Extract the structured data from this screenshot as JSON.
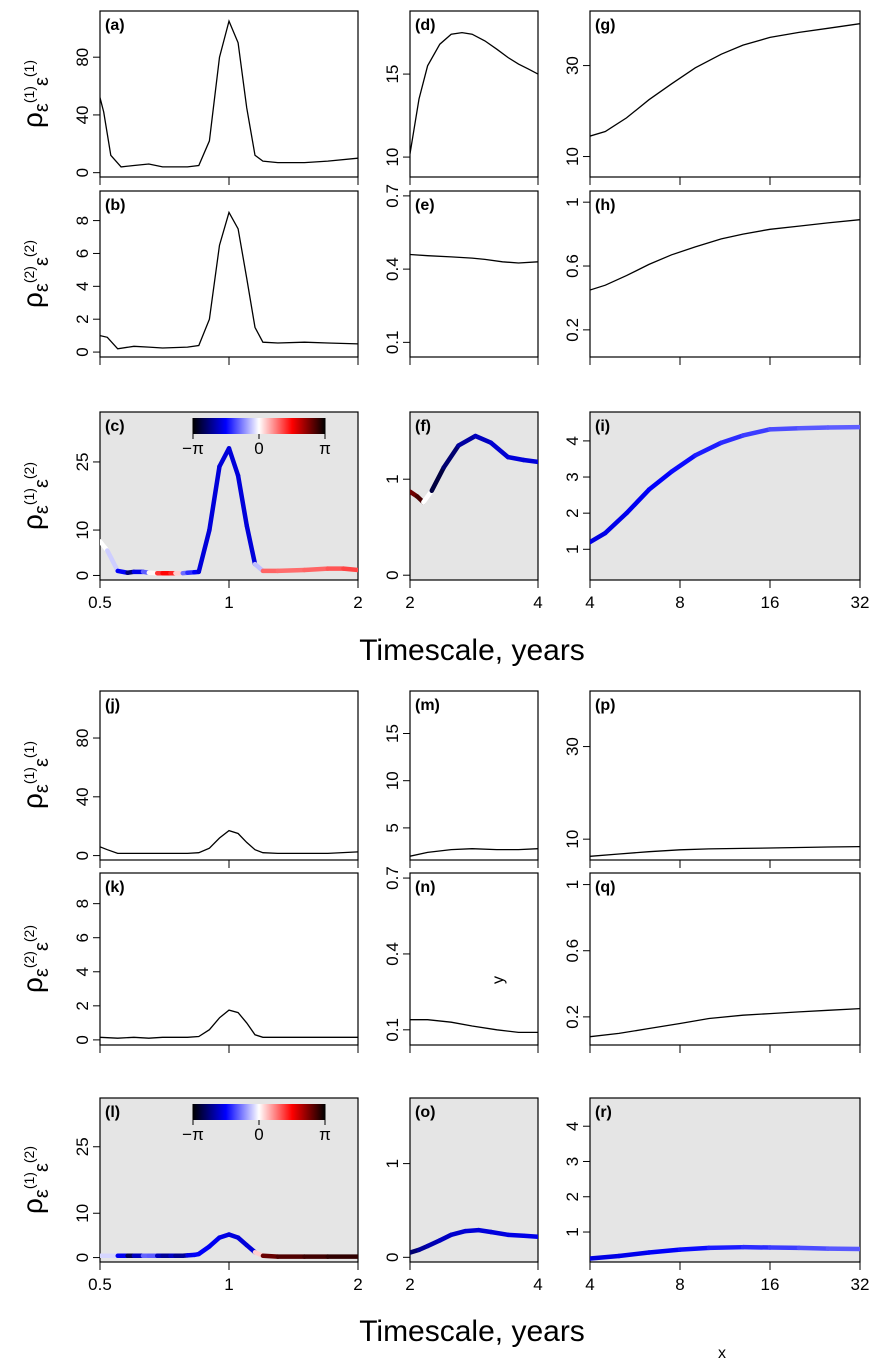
{
  "figure": {
    "xlabel_top": "Timescale, years",
    "xlabel_bottom": "Timescale, years",
    "stray_x": "x",
    "stray_y": "y"
  },
  "colorbar": {
    "labels": [
      "−π",
      "0",
      "π"
    ],
    "colors": [
      "#000000",
      "#0000ff",
      "#ffffff",
      "#ff0000",
      "#000000"
    ]
  },
  "row_ylabels": {
    "rho11": {
      "main": "ρ",
      "sub": "ε",
      "sup1": "(1)",
      "sub2": "ε",
      "sup2": "(1)"
    },
    "rho22": {
      "main": "ρ",
      "sub": "ε",
      "sup1": "(2)",
      "sub2": "ε",
      "sup2": "(2)"
    },
    "rho12": {
      "main": "ρ",
      "sub": "ε",
      "sup1": "(1)",
      "sub2": "ε",
      "sup2": "(2)"
    }
  },
  "chart_data": [
    {
      "id": "a",
      "label": "(a)",
      "type": "line",
      "xscale": "log2",
      "xlim": [
        0.5,
        2
      ],
      "ylim": [
        -3,
        112
      ],
      "yticks": [
        0,
        40,
        80
      ],
      "ylabel": "rho11",
      "x": [
        0.5,
        0.51,
        0.53,
        0.56,
        0.6,
        0.65,
        0.7,
        0.75,
        0.8,
        0.85,
        0.9,
        0.95,
        1.0,
        1.05,
        1.1,
        1.15,
        1.2,
        1.3,
        1.5,
        1.7,
        2.0
      ],
      "y": [
        52,
        42,
        12,
        4,
        5,
        6,
        4,
        4,
        4,
        5,
        22,
        80,
        105,
        90,
        45,
        12,
        8,
        7,
        7,
        8,
        10
      ]
    },
    {
      "id": "b",
      "label": "(b)",
      "type": "line",
      "xscale": "log2",
      "xlim": [
        0.5,
        2
      ],
      "ylim": [
        -0.3,
        9.8
      ],
      "yticks": [
        0,
        2,
        4,
        6,
        8
      ],
      "ylabel": "rho22",
      "x": [
        0.5,
        0.52,
        0.55,
        0.6,
        0.65,
        0.7,
        0.8,
        0.85,
        0.9,
        0.95,
        1.0,
        1.05,
        1.1,
        1.15,
        1.2,
        1.3,
        1.5,
        1.7,
        2.0
      ],
      "y": [
        1.0,
        0.9,
        0.2,
        0.35,
        0.3,
        0.25,
        0.3,
        0.4,
        2.0,
        6.5,
        8.5,
        7.5,
        4.5,
        1.5,
        0.6,
        0.55,
        0.6,
        0.55,
        0.5
      ]
    },
    {
      "id": "c",
      "label": "(c)",
      "type": "line",
      "xscale": "log2",
      "xlim": [
        0.5,
        2
      ],
      "ylim": [
        -1,
        36
      ],
      "yticks": [
        0,
        10,
        25
      ],
      "ylabel": "rho12",
      "shaded": true,
      "colorbar": true,
      "x": [
        0.5,
        0.52,
        0.55,
        0.58,
        0.6,
        0.63,
        0.65,
        0.68,
        0.7,
        0.73,
        0.75,
        0.78,
        0.8,
        0.83,
        0.85,
        0.9,
        0.95,
        1.0,
        1.05,
        1.1,
        1.15,
        1.2,
        1.3,
        1.5,
        1.7,
        1.85,
        2.0
      ],
      "y": [
        7.5,
        5.5,
        1.0,
        0.6,
        0.8,
        0.8,
        0.6,
        0.5,
        0.5,
        0.5,
        0.5,
        0.5,
        0.6,
        0.7,
        0.8,
        10,
        24,
        28,
        22,
        11,
        2.5,
        1.0,
        1.0,
        1.2,
        1.5,
        1.5,
        1.2
      ],
      "phase": [
        0.0,
        0.0,
        -0.6,
        -2.6,
        -2.2,
        -1.2,
        -0.8,
        0.9,
        1.6,
        1.5,
        1.2,
        -0.6,
        -1.2,
        -1.4,
        -1.8,
        -1.8,
        -1.8,
        -1.8,
        -1.8,
        -1.8,
        -1.8,
        1.0,
        0.9,
        0.9,
        1.0,
        1.1,
        1.2
      ]
    },
    {
      "id": "d",
      "label": "(d)",
      "type": "line",
      "xscale": "log2",
      "xlim": [
        2,
        4
      ],
      "ylim": [
        8.8,
        18.8
      ],
      "yticks": [
        10,
        15
      ],
      "ylabel": "",
      "x": [
        2,
        2.1,
        2.2,
        2.35,
        2.5,
        2.65,
        2.8,
        3.0,
        3.2,
        3.4,
        3.6,
        3.8,
        4.0
      ],
      "y": [
        10.2,
        13.5,
        15.5,
        16.8,
        17.4,
        17.5,
        17.4,
        17.0,
        16.5,
        16.0,
        15.6,
        15.3,
        15.0
      ]
    },
    {
      "id": "e",
      "label": "(e)",
      "type": "line",
      "xscale": "log2",
      "xlim": [
        2,
        4
      ],
      "ylim": [
        0.04,
        0.72
      ],
      "yticks": [
        0.1,
        0.4,
        0.7
      ],
      "ylabel": "",
      "x": [
        2,
        2.2,
        2.5,
        2.8,
        3.0,
        3.3,
        3.6,
        4.0
      ],
      "y": [
        0.46,
        0.455,
        0.45,
        0.445,
        0.44,
        0.43,
        0.425,
        0.43
      ]
    },
    {
      "id": "f",
      "label": "(f)",
      "type": "line",
      "xscale": "log2",
      "xlim": [
        2,
        4
      ],
      "ylim": [
        -0.05,
        1.7
      ],
      "yticks": [
        0.0,
        1.0
      ],
      "ylabel": "",
      "shaded": true,
      "x": [
        2,
        2.08,
        2.15,
        2.25,
        2.4,
        2.6,
        2.85,
        3.1,
        3.4,
        3.7,
        4.0
      ],
      "y": [
        0.87,
        0.82,
        0.76,
        0.88,
        1.12,
        1.35,
        1.45,
        1.38,
        1.23,
        1.2,
        1.18
      ],
      "phase": [
        2.4,
        2.5,
        2.9,
        -2.9,
        -2.6,
        -2.3,
        -2.0,
        -1.9,
        -1.8,
        -1.8,
        -1.8
      ]
    },
    {
      "id": "g",
      "label": "(g)",
      "type": "line",
      "xscale": "log2",
      "xlim": [
        4,
        32
      ],
      "ylim": [
        5.5,
        42
      ],
      "yticks": [
        10,
        30
      ],
      "ylabel": "",
      "x": [
        4,
        4.5,
        5.3,
        6.3,
        7.5,
        9,
        11,
        13,
        16,
        20,
        25,
        32
      ],
      "y": [
        14.5,
        15.5,
        18.5,
        22.5,
        26,
        29.5,
        32.5,
        34.5,
        36.2,
        37.3,
        38.2,
        39.2
      ]
    },
    {
      "id": "h",
      "label": "(h)",
      "type": "line",
      "xscale": "log2",
      "xlim": [
        4,
        32
      ],
      "ylim": [
        0.03,
        1.07
      ],
      "yticks": [
        0.2,
        0.6,
        1.0
      ],
      "ylabel": "",
      "x": [
        4,
        4.5,
        5.3,
        6.3,
        7.5,
        9,
        11,
        13,
        16,
        20,
        25,
        32
      ],
      "y": [
        0.45,
        0.48,
        0.54,
        0.61,
        0.67,
        0.72,
        0.77,
        0.8,
        0.83,
        0.85,
        0.87,
        0.89
      ]
    },
    {
      "id": "i",
      "label": "(i)",
      "type": "line",
      "xscale": "log2",
      "xlim": [
        4,
        32
      ],
      "ylim": [
        0.15,
        4.8
      ],
      "yticks": [
        1,
        2,
        3,
        4
      ],
      "ylabel": "",
      "shaded": true,
      "x": [
        4,
        4.5,
        5.3,
        6.3,
        7.5,
        9,
        11,
        13,
        16,
        20,
        25,
        32
      ],
      "y": [
        1.2,
        1.45,
        2.0,
        2.65,
        3.15,
        3.6,
        3.95,
        4.15,
        4.32,
        4.35,
        4.37,
        4.38
      ],
      "phase": [
        -1.75,
        -1.72,
        -1.68,
        -1.62,
        -1.55,
        -1.45,
        -1.35,
        -1.25,
        -1.15,
        -1.05,
        -1.0,
        -1.0
      ]
    },
    {
      "id": "j",
      "label": "(j)",
      "type": "line",
      "xscale": "log2",
      "xlim": [
        0.5,
        2
      ],
      "ylim": [
        -3,
        112
      ],
      "yticks": [
        0,
        40,
        80
      ],
      "ylabel": "rho11",
      "x": [
        0.5,
        0.52,
        0.55,
        0.6,
        0.65,
        0.7,
        0.8,
        0.85,
        0.9,
        0.95,
        1.0,
        1.05,
        1.1,
        1.15,
        1.2,
        1.3,
        1.5,
        1.7,
        2.0
      ],
      "y": [
        6,
        4,
        1.5,
        1.5,
        1.5,
        1.5,
        1.5,
        2,
        5,
        12,
        17,
        15,
        9,
        4,
        2,
        1.5,
        1.5,
        1.5,
        2.5
      ]
    },
    {
      "id": "k",
      "label": "(k)",
      "type": "line",
      "xscale": "log2",
      "xlim": [
        0.5,
        2
      ],
      "ylim": [
        -0.3,
        9.8
      ],
      "yticks": [
        0,
        2,
        4,
        6,
        8
      ],
      "ylabel": "rho22",
      "x": [
        0.5,
        0.55,
        0.6,
        0.65,
        0.7,
        0.8,
        0.85,
        0.9,
        0.95,
        1.0,
        1.05,
        1.1,
        1.15,
        1.2,
        1.3,
        1.5,
        1.7,
        2.0
      ],
      "y": [
        0.15,
        0.1,
        0.15,
        0.1,
        0.15,
        0.15,
        0.2,
        0.6,
        1.3,
        1.75,
        1.6,
        1.0,
        0.3,
        0.15,
        0.15,
        0.15,
        0.15,
        0.15
      ]
    },
    {
      "id": "l",
      "label": "(l)",
      "type": "line",
      "xscale": "log2",
      "xlim": [
        0.5,
        2
      ],
      "ylim": [
        -1,
        36
      ],
      "yticks": [
        0,
        10,
        25
      ],
      "ylabel": "rho12",
      "shaded": true,
      "colorbar": true,
      "x": [
        0.5,
        0.55,
        0.58,
        0.6,
        0.63,
        0.65,
        0.68,
        0.7,
        0.73,
        0.75,
        0.78,
        0.8,
        0.83,
        0.85,
        0.9,
        0.95,
        1.0,
        1.05,
        1.1,
        1.15,
        1.2,
        1.3,
        1.5,
        1.7,
        2.0
      ],
      "y": [
        0.4,
        0.4,
        0.4,
        0.4,
        0.4,
        0.4,
        0.4,
        0.4,
        0.4,
        0.4,
        0.4,
        0.5,
        0.6,
        0.8,
        2.5,
        4.5,
        5.2,
        4.5,
        2.8,
        1.2,
        0.4,
        0.2,
        0.2,
        0.2,
        0.2
      ],
      "phase": [
        0.0,
        -0.5,
        -2.8,
        -2.4,
        -1.5,
        -0.4,
        -1.6,
        -2.4,
        -2.0,
        -1.9,
        -2.6,
        -1.8,
        -1.6,
        -1.6,
        -1.6,
        -1.7,
        -1.75,
        -1.8,
        -1.8,
        -1.8,
        2.4,
        2.6,
        2.7,
        2.8,
        2.9
      ]
    },
    {
      "id": "m",
      "label": "(m)",
      "type": "line",
      "xscale": "log2",
      "xlim": [
        2,
        4
      ],
      "ylim": [
        1.6,
        19.5
      ],
      "yticks": [
        5,
        10,
        15
      ],
      "ylabel": "",
      "x": [
        2,
        2.2,
        2.5,
        2.8,
        3.2,
        3.6,
        4.0
      ],
      "y": [
        2.0,
        2.4,
        2.7,
        2.8,
        2.7,
        2.7,
        2.8
      ]
    },
    {
      "id": "n",
      "label": "(n)",
      "type": "line",
      "xscale": "log2",
      "xlim": [
        2,
        4
      ],
      "ylim": [
        0.04,
        0.72
      ],
      "yticks": [
        0.1,
        0.4,
        0.7
      ],
      "ylabel": "",
      "x": [
        2,
        2.2,
        2.5,
        2.8,
        3.2,
        3.6,
        4.0
      ],
      "y": [
        0.14,
        0.14,
        0.13,
        0.115,
        0.1,
        0.09,
        0.09
      ]
    },
    {
      "id": "o",
      "label": "(o)",
      "type": "line",
      "xscale": "log2",
      "xlim": [
        2,
        4
      ],
      "ylim": [
        -0.05,
        1.7
      ],
      "yticks": [
        0.0,
        1.0
      ],
      "ylabel": "",
      "shaded": true,
      "x": [
        2,
        2.1,
        2.2,
        2.35,
        2.5,
        2.7,
        2.9,
        3.1,
        3.4,
        3.7,
        4.0
      ],
      "y": [
        0.05,
        0.08,
        0.12,
        0.18,
        0.24,
        0.28,
        0.29,
        0.27,
        0.24,
        0.23,
        0.22
      ],
      "phase": [
        -2.6,
        -2.3,
        -2.1,
        -2.0,
        -1.9,
        -1.85,
        -1.8,
        -1.8,
        -1.75,
        -1.7,
        -1.7
      ]
    },
    {
      "id": "p",
      "label": "(p)",
      "type": "line",
      "xscale": "log2",
      "xlim": [
        4,
        32
      ],
      "ylim": [
        5.5,
        42
      ],
      "yticks": [
        10,
        30
      ],
      "ylabel": "",
      "x": [
        4,
        5,
        6.3,
        8,
        10,
        13,
        16,
        20,
        25,
        32
      ],
      "y": [
        6.3,
        6.8,
        7.3,
        7.7,
        7.9,
        8.0,
        8.1,
        8.2,
        8.3,
        8.4
      ]
    },
    {
      "id": "q",
      "label": "(q)",
      "type": "line",
      "xscale": "log2",
      "xlim": [
        4,
        32
      ],
      "ylim": [
        0.03,
        1.07
      ],
      "yticks": [
        0.2,
        0.6,
        1.0
      ],
      "ylabel": "",
      "x": [
        4,
        5,
        6.3,
        8,
        10,
        13,
        16,
        20,
        25,
        32
      ],
      "y": [
        0.08,
        0.1,
        0.13,
        0.16,
        0.19,
        0.21,
        0.22,
        0.23,
        0.24,
        0.25
      ]
    },
    {
      "id": "r",
      "label": "(r)",
      "type": "line",
      "xscale": "log2",
      "xlim": [
        4,
        32
      ],
      "ylim": [
        0.15,
        4.8
      ],
      "yticks": [
        1,
        2,
        3,
        4
      ],
      "ylabel": "",
      "shaded": true,
      "x": [
        4,
        5,
        6.3,
        8,
        10,
        13,
        16,
        20,
        25,
        32
      ],
      "y": [
        0.25,
        0.32,
        0.42,
        0.5,
        0.55,
        0.57,
        0.56,
        0.55,
        0.53,
        0.52
      ],
      "phase": [
        -1.75,
        -1.72,
        -1.65,
        -1.55,
        -1.45,
        -1.35,
        -1.25,
        -1.15,
        -1.05,
        -1.0
      ]
    }
  ],
  "xaxes": [
    {
      "col": 0,
      "ticks": [
        0.5,
        1,
        2
      ],
      "labels": [
        "0.5",
        "1",
        "2"
      ]
    },
    {
      "col": 1,
      "ticks": [
        2,
        4
      ],
      "labels": [
        "2",
        "4"
      ]
    },
    {
      "col": 2,
      "ticks": [
        4,
        8,
        16,
        32
      ],
      "labels": [
        "4",
        "8",
        "16",
        "32"
      ]
    }
  ]
}
